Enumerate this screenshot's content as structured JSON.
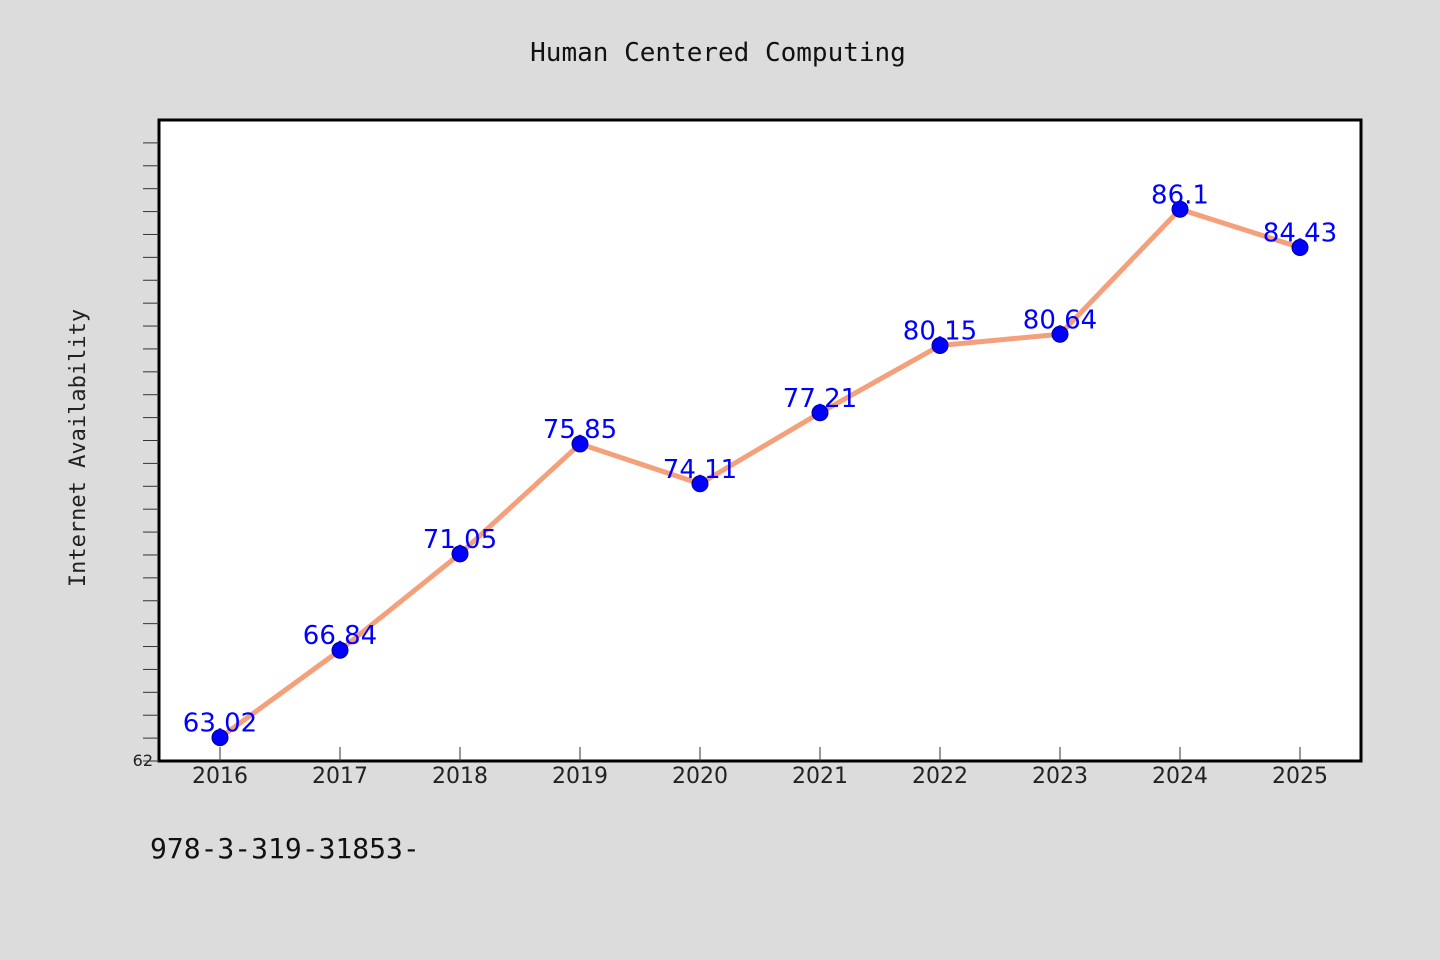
{
  "chart_data": {
    "type": "line",
    "title": "Human Centered Computing",
    "ylabel": "Internet Availability",
    "xlabel": "",
    "x": [
      "2016",
      "2017",
      "2018",
      "2019",
      "2020",
      "2021",
      "2022",
      "2023",
      "2024",
      "2025"
    ],
    "series": [
      {
        "values": [
          63.02,
          66.84,
          71.05,
          75.85,
          74.11,
          77.21,
          80.15,
          80.64,
          86.1,
          84.43
        ],
        "data_labels": [
          "63.02",
          "66.84",
          "71.05",
          "75.85",
          "74.11",
          "77.21",
          "80.15",
          "80.64",
          "86.1",
          "84.43"
        ]
      }
    ],
    "ylim": [
      62,
      90
    ],
    "y_tick_labels_shown": [
      "62"
    ],
    "grid": false,
    "line_color": "#f4a07a",
    "marker_color": "#0000ff",
    "label_color": "#0000ff"
  },
  "footer": {
    "code": "978-3-319-31853-"
  }
}
